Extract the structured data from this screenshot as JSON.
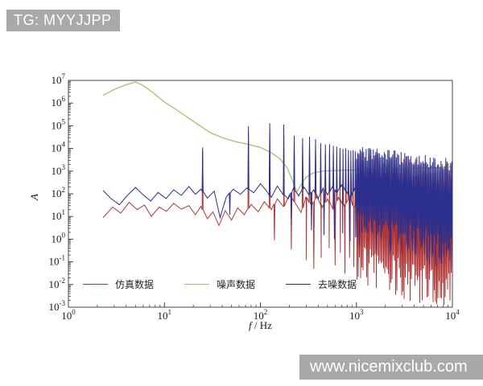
{
  "watermarks": {
    "top": "TG: MYYJJPP",
    "bottom": "www.nicemixclub.com"
  },
  "chart_data": {
    "type": "line",
    "title": "",
    "xlabel": "f / Hz",
    "ylabel": "A",
    "xscale": "log",
    "yscale": "log",
    "xlim": [
      1,
      10000
    ],
    "ylim": [
      0.001,
      10000000
    ],
    "x_tick_exponents": [
      0,
      1,
      2,
      3,
      4
    ],
    "y_tick_exponents": [
      7,
      6,
      5,
      4,
      3,
      2,
      1,
      0,
      -1,
      -2,
      -3
    ],
    "grid": false,
    "legend_position": "lower-left-inside",
    "legend": [
      {
        "label": "仿真数据",
        "color": "#b03636"
      },
      {
        "label": "噪声数据",
        "color": "#9fc46f"
      },
      {
        "label": "去噪数据",
        "color": "#2b2f8e"
      }
    ],
    "series": [
      {
        "name": "仿真数据",
        "color": "#b03636",
        "width": 1,
        "base": [
          [
            2.3,
            9
          ],
          [
            2.9,
            26
          ],
          [
            3.5,
            14
          ],
          [
            4.3,
            42
          ],
          [
            5.2,
            20
          ],
          [
            6.2,
            32
          ],
          [
            7.3,
            10
          ],
          [
            8.8,
            26
          ],
          [
            10.5,
            17
          ],
          [
            12.5,
            38
          ],
          [
            15,
            21
          ],
          [
            18,
            30
          ],
          [
            21,
            12
          ],
          [
            24,
            28
          ],
          [
            28,
            8
          ],
          [
            32,
            16
          ],
          [
            37,
            4
          ],
          [
            43,
            18
          ],
          [
            50,
            7
          ],
          [
            58,
            24
          ],
          [
            68,
            12
          ],
          [
            80,
            34
          ],
          [
            95,
            16
          ],
          [
            110,
            45
          ],
          [
            130,
            20
          ],
          [
            150,
            60
          ],
          [
            175,
            28
          ],
          [
            200,
            90
          ],
          [
            230,
            40
          ],
          [
            265,
            15
          ],
          [
            300,
            70
          ],
          [
            340,
            30
          ],
          [
            390,
            80
          ],
          [
            440,
            25
          ],
          [
            500,
            60
          ],
          [
            570,
            20
          ],
          [
            650,
            70
          ],
          [
            740,
            30
          ],
          [
            840,
            60
          ],
          [
            950,
            25
          ],
          [
            1000,
            40
          ]
        ],
        "up_spikes": [
          [
            25,
            8000
          ],
          [
            75,
            55000
          ],
          [
            125,
            70000
          ],
          [
            175,
            60000
          ],
          [
            225,
            18000
          ],
          [
            275,
            14000
          ],
          [
            325,
            16000
          ],
          [
            375,
            11000
          ],
          [
            425,
            7000
          ],
          [
            475,
            6000
          ],
          [
            525,
            6500
          ],
          [
            575,
            5000
          ],
          [
            625,
            4500
          ],
          [
            675,
            4000
          ],
          [
            725,
            3500
          ],
          [
            775,
            3800
          ],
          [
            825,
            3000
          ],
          [
            875,
            2800
          ],
          [
            925,
            3000
          ],
          [
            975,
            2600
          ]
        ],
        "down_spikes": [
          [
            140,
            0.9
          ],
          [
            210,
            0.35
          ],
          [
            300,
            0.12
          ],
          [
            360,
            0.05
          ],
          [
            430,
            0.15
          ],
          [
            520,
            0.4
          ],
          [
            600,
            0.07
          ],
          [
            680,
            0.25
          ],
          [
            760,
            0.03
          ],
          [
            850,
            0.15
          ],
          [
            940,
            0.06
          ]
        ],
        "band": {
          "f0": 1000,
          "f1": 10000,
          "top0": 2800,
          "top1": 950,
          "bot0": 0.08,
          "bot1": 0.004,
          "top_jitter": 0.5,
          "bot_jitter": 0.9
        }
      },
      {
        "name": "噪声数据",
        "color": "#9fc46f",
        "width": 1.3,
        "points": [
          [
            2.3,
            2200000
          ],
          [
            3.0,
            4000000
          ],
          [
            4.0,
            6500000
          ],
          [
            5.0,
            8500000
          ],
          [
            6.0,
            6000000
          ],
          [
            7.5,
            3000000
          ],
          [
            10,
            1100000
          ],
          [
            13,
            550000
          ],
          [
            16,
            300000
          ],
          [
            22,
            120000
          ],
          [
            30,
            50000
          ],
          [
            40,
            30000
          ],
          [
            55,
            20000
          ],
          [
            75,
            15000
          ],
          [
            100,
            11000
          ],
          [
            130,
            6500
          ],
          [
            160,
            3500
          ],
          [
            190,
            1400
          ],
          [
            215,
            400
          ],
          [
            240,
            120
          ],
          [
            265,
            250
          ],
          [
            300,
            550
          ],
          [
            360,
            850
          ],
          [
            430,
            980
          ],
          [
            550,
            1050
          ],
          [
            750,
            1100
          ],
          [
            1000,
            1130
          ],
          [
            1600,
            1200
          ],
          [
            2600,
            1280
          ],
          [
            4200,
            1380
          ],
          [
            7000,
            1460
          ],
          [
            10000,
            1550
          ]
        ]
      },
      {
        "name": "去噪数据",
        "color": "#2b2f8e",
        "width": 1,
        "base": [
          [
            2.3,
            140
          ],
          [
            2.8,
            60
          ],
          [
            3.4,
            33
          ],
          [
            4.1,
            85
          ],
          [
            5.0,
            190
          ],
          [
            6.0,
            90
          ],
          [
            7.2,
            48
          ],
          [
            8.6,
            115
          ],
          [
            10.4,
            62
          ],
          [
            12.5,
            150
          ],
          [
            15,
            85
          ],
          [
            18,
            210
          ],
          [
            21,
            95
          ],
          [
            24,
            160
          ],
          [
            28,
            65
          ],
          [
            33,
            130
          ],
          [
            38,
            9
          ],
          [
            44,
            70
          ],
          [
            52,
            160
          ],
          [
            62,
            95
          ],
          [
            72,
            180
          ],
          [
            85,
            110
          ],
          [
            100,
            280
          ],
          [
            115,
            140
          ],
          [
            130,
            70
          ],
          [
            150,
            220
          ],
          [
            170,
            100
          ],
          [
            195,
            60
          ],
          [
            220,
            170
          ],
          [
            250,
            80
          ],
          [
            285,
            200
          ],
          [
            320,
            90
          ],
          [
            360,
            150
          ],
          [
            400,
            60
          ],
          [
            450,
            180
          ],
          [
            500,
            90
          ],
          [
            560,
            200
          ],
          [
            630,
            110
          ],
          [
            700,
            250
          ],
          [
            780,
            130
          ],
          [
            870,
            70
          ],
          [
            960,
            180
          ],
          [
            1000,
            120
          ]
        ],
        "up_spikes": [
          [
            25,
            11000
          ],
          [
            75,
            95000
          ],
          [
            125,
            130000
          ],
          [
            175,
            115000
          ],
          [
            225,
            36000
          ],
          [
            275,
            29000
          ],
          [
            325,
            33000
          ],
          [
            375,
            26000
          ],
          [
            425,
            17000
          ],
          [
            475,
            15000
          ],
          [
            525,
            15500
          ],
          [
            575,
            13000
          ],
          [
            625,
            12000
          ],
          [
            675,
            10500
          ],
          [
            725,
            9500
          ],
          [
            775,
            10000
          ],
          [
            825,
            8500
          ],
          [
            875,
            8000
          ],
          [
            925,
            8500
          ],
          [
            975,
            7500
          ]
        ],
        "down_spikes": [
          [
            48,
            12
          ],
          [
            210,
            8
          ],
          [
            340,
            2.5
          ],
          [
            460,
            1.5
          ],
          [
            590,
            1.0
          ],
          [
            720,
            1.8
          ],
          [
            860,
            0.8
          ],
          [
            980,
            1.2
          ]
        ],
        "band": {
          "f0": 1000,
          "f1": 10000,
          "top0": 7500,
          "top1": 2400,
          "bot0": 3.0,
          "bot1": 0.25,
          "top_jitter": 0.3,
          "bot_jitter": 0.8
        }
      }
    ]
  }
}
